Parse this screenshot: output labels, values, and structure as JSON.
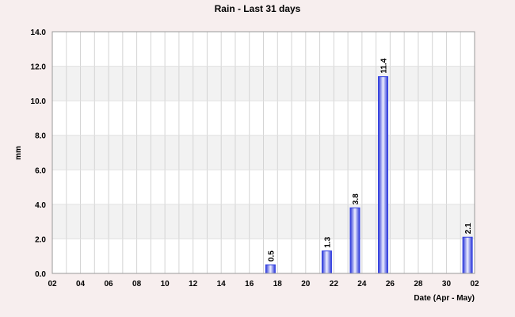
{
  "chart_data": {
    "type": "bar",
    "title": "Rain - Last 31 days",
    "xlabel": "Date (Apr - May)",
    "ylabel": "mm",
    "ylim": [
      0,
      14
    ],
    "yticks": [
      "0.0",
      "2.0",
      "4.0",
      "6.0",
      "8.0",
      "10.0",
      "12.0",
      "14.0"
    ],
    "xtick_labels": [
      "02",
      "04",
      "06",
      "08",
      "10",
      "12",
      "14",
      "16",
      "18",
      "20",
      "22",
      "24",
      "26",
      "28",
      "30",
      "02"
    ],
    "x_days": [
      "Apr 02",
      "Apr 03",
      "Apr 04",
      "Apr 05",
      "Apr 06",
      "Apr 07",
      "Apr 08",
      "Apr 09",
      "Apr 10",
      "Apr 11",
      "Apr 12",
      "Apr 13",
      "Apr 14",
      "Apr 15",
      "Apr 16",
      "Apr 17",
      "Apr 18",
      "Apr 19",
      "Apr 20",
      "Apr 21",
      "Apr 22",
      "Apr 23",
      "Apr 24",
      "Apr 25",
      "Apr 26",
      "Apr 27",
      "Apr 28",
      "Apr 29",
      "Apr 30",
      "May 01",
      "May 02"
    ],
    "values": [
      0,
      0,
      0,
      0,
      0,
      0,
      0,
      0,
      0,
      0,
      0,
      0,
      0,
      0,
      0,
      0.5,
      0,
      0,
      0,
      1.3,
      0,
      3.8,
      0,
      11.4,
      0,
      0,
      0,
      0,
      0,
      2.1,
      0
    ],
    "data_labels": [
      "",
      "",
      "",
      "",
      "",
      "",
      "",
      "",
      "",
      "",
      "",
      "",
      "",
      "",
      "",
      "0.5",
      "",
      "",
      "",
      "1.3",
      "",
      "3.8",
      "",
      "11.4",
      "",
      "",
      "",
      "",
      "",
      "2.1",
      ""
    ],
    "grid": true,
    "band_color": "#f2f2f2",
    "bar_color": "#3340e0",
    "bar_highlight": "#e8ecff"
  }
}
